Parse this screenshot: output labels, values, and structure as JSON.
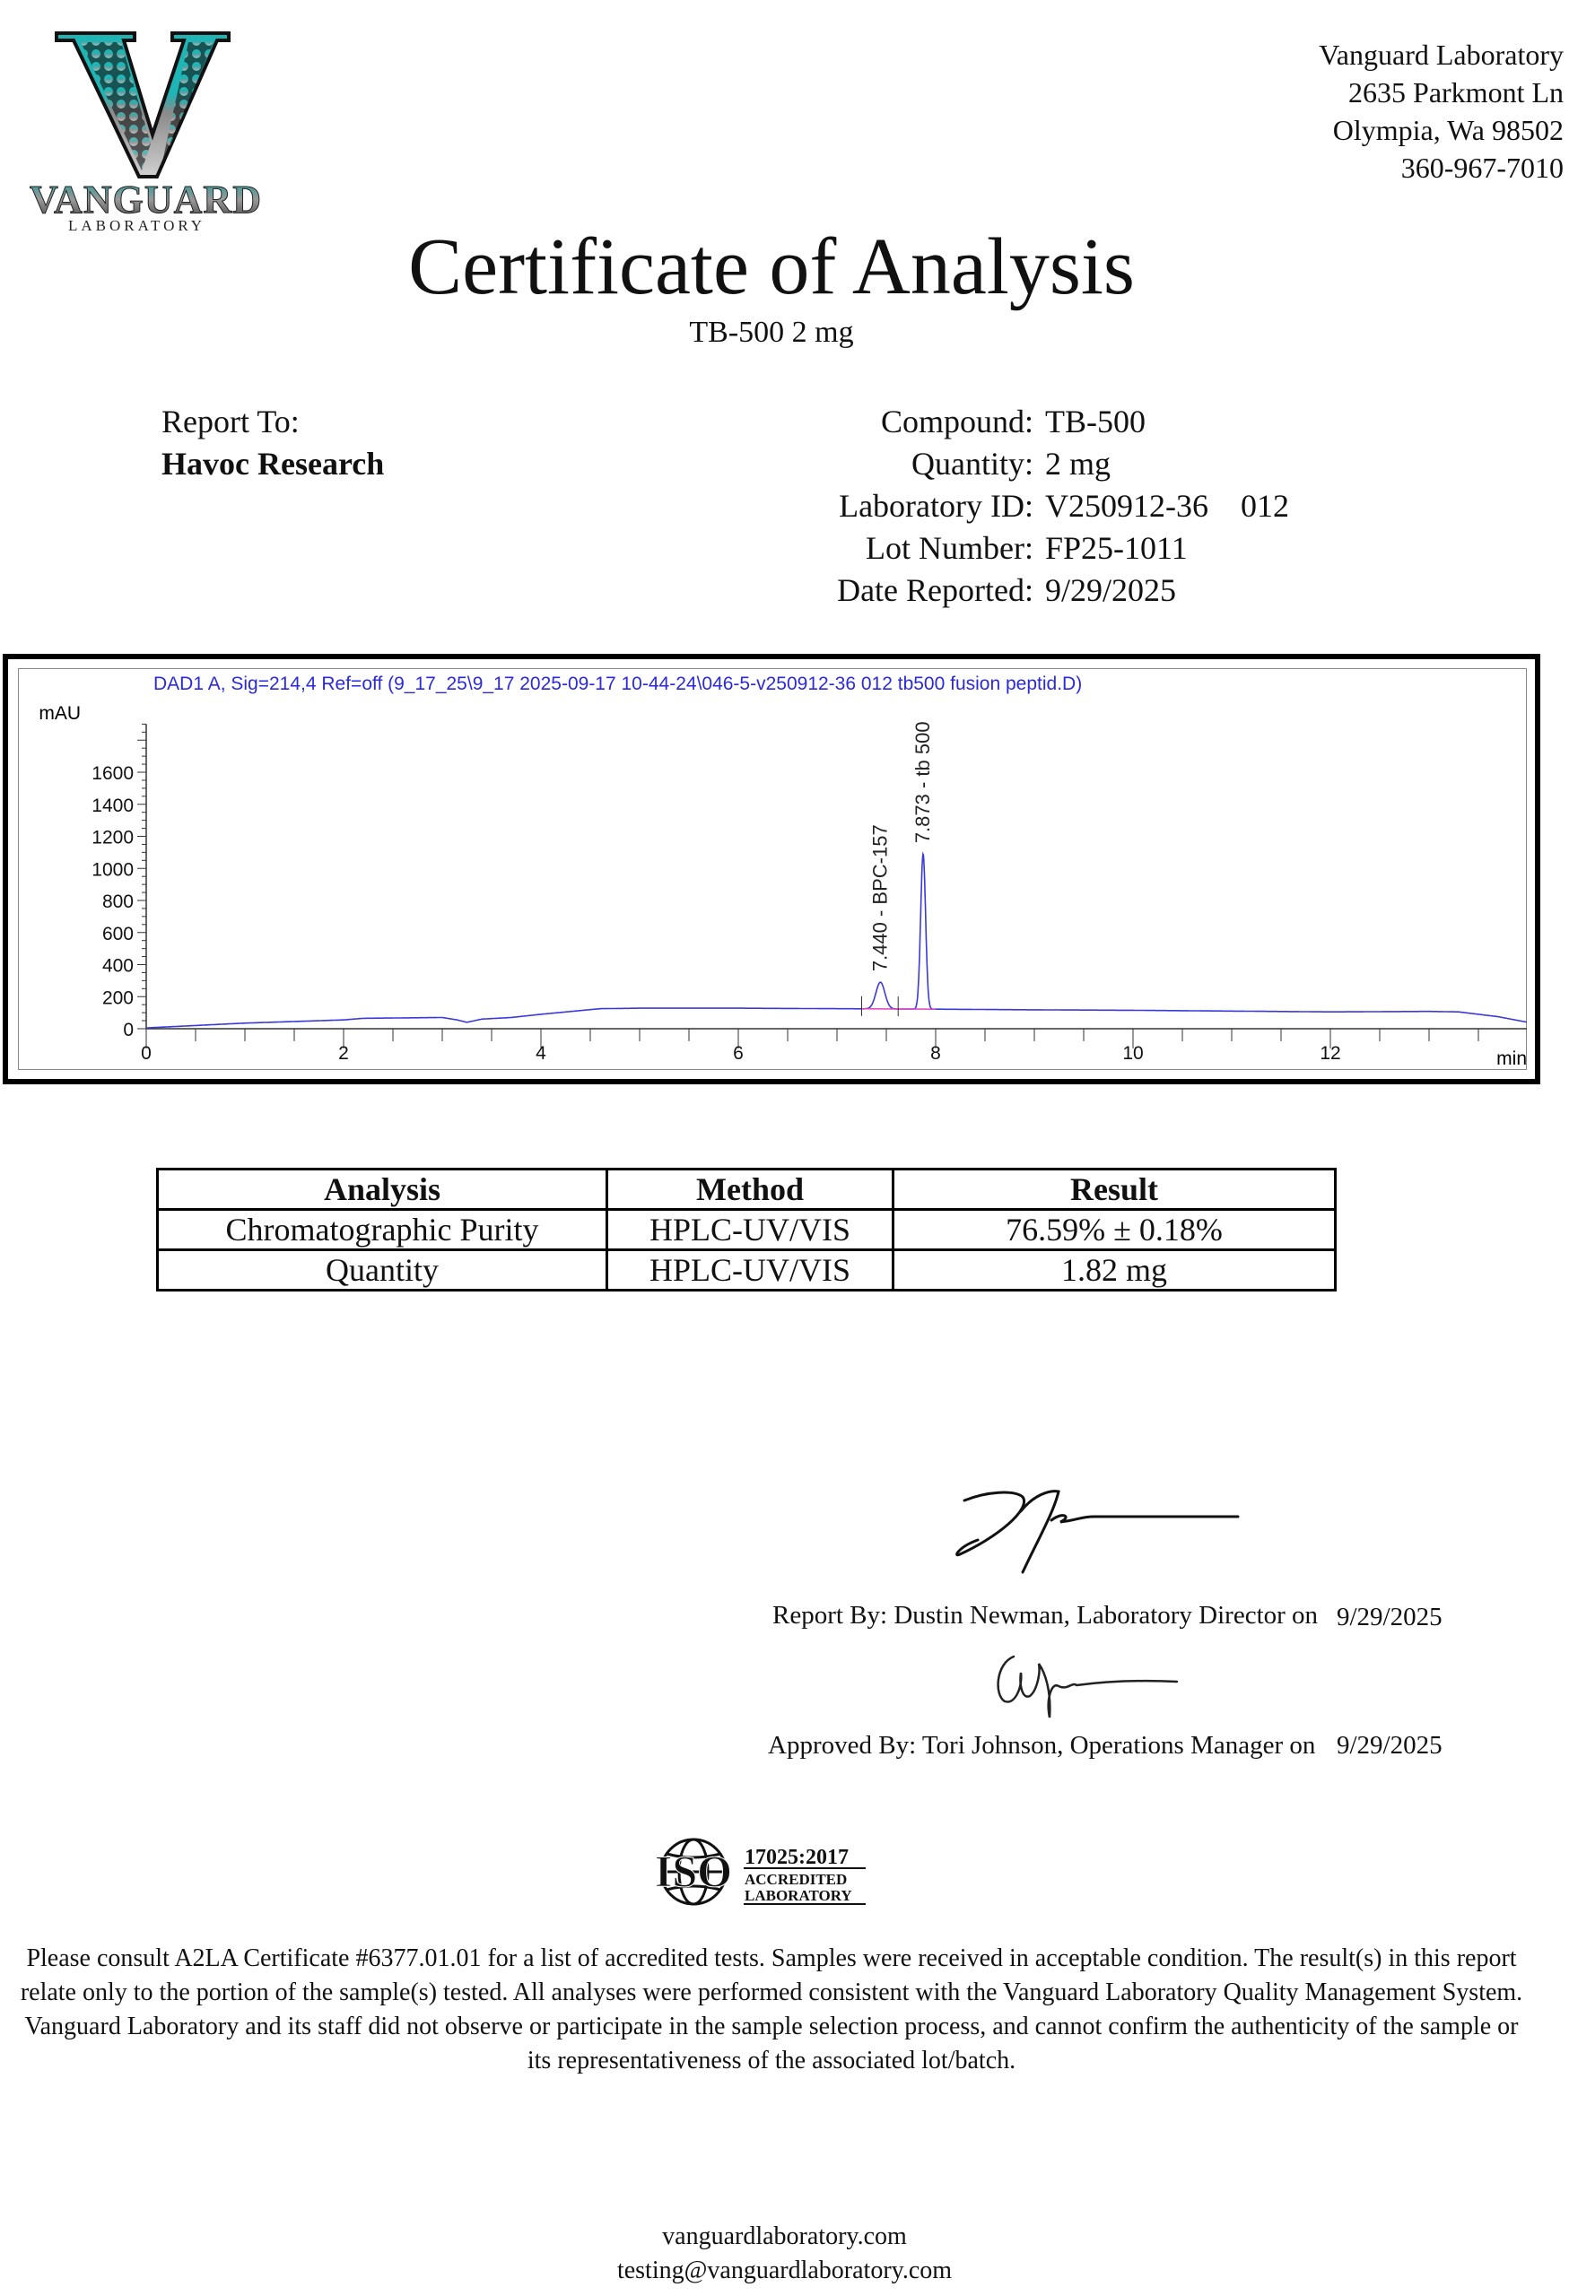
{
  "logo": {
    "letter": "V",
    "name": "VANGUARD",
    "sub": "LABORATORY",
    "teal": "#1fb5b5"
  },
  "address": [
    "Vanguard Laboratory",
    "2635 Parkmont Ln",
    "Olympia, Wa 98502",
    "360-967-7010"
  ],
  "title": "Certificate of Analysis",
  "subtitle": "TB-500 2 mg",
  "report_to": {
    "label": "Report To:",
    "name": "Havoc Research"
  },
  "info": [
    {
      "label": "Compound:",
      "value": "TB-500"
    },
    {
      "label": "Quantity:",
      "value": "2 mg"
    },
    {
      "label": "Laboratory ID:",
      "value": "V250912-36    012"
    },
    {
      "label": "Lot Number:",
      "value": "FP25-1011"
    },
    {
      "label": "Date Reported:",
      "value": "9/29/2025"
    }
  ],
  "chart_data": {
    "type": "line",
    "title": "DAD1 A, Sig=214,4 Ref=off (9_17_25\\9_17 2025-09-17 10-44-24\\046-5-v250912-36 012 tb500 fusion peptid.D)",
    "xlabel": "min",
    "ylabel": "mAU",
    "xlim": [
      0,
      14
    ],
    "ylim": [
      0,
      1900
    ],
    "xticks": [
      0,
      2,
      4,
      6,
      8,
      10,
      12
    ],
    "yticks": [
      0,
      200,
      400,
      600,
      800,
      1000,
      1200,
      1400,
      1600
    ],
    "grid": false,
    "line_color": "#3a3ad8",
    "title_color": "#2a2adc",
    "baseline": [
      [
        0,
        5
      ],
      [
        0.5,
        20
      ],
      [
        1,
        35
      ],
      [
        1.5,
        45
      ],
      [
        2,
        55
      ],
      [
        2.2,
        65
      ],
      [
        3,
        70
      ],
      [
        3.15,
        55
      ],
      [
        3.25,
        40
      ],
      [
        3.4,
        60
      ],
      [
        3.7,
        70
      ],
      [
        4,
        90
      ],
      [
        4.6,
        125
      ],
      [
        5,
        128
      ],
      [
        6,
        128
      ],
      [
        7,
        125
      ],
      [
        8,
        122
      ],
      [
        9,
        118
      ],
      [
        10,
        115
      ],
      [
        11,
        110
      ],
      [
        12,
        105
      ],
      [
        13,
        108
      ],
      [
        13.3,
        105
      ],
      [
        13.7,
        75
      ],
      [
        14,
        40
      ]
    ],
    "peaks": [
      {
        "rt": 7.44,
        "apex": 290,
        "label": "7.440 - BPC-157"
      },
      {
        "rt": 7.873,
        "apex": 1090,
        "label": "7.873 - tb 500"
      }
    ]
  },
  "table": {
    "headers": [
      "Analysis",
      "Method",
      "Result"
    ],
    "rows": [
      [
        "Chromatographic Purity",
        "HPLC-UV/VIS",
        "76.59% ± 0.18%"
      ],
      [
        "Quantity",
        "HPLC-UV/VIS",
        "1.82 mg"
      ]
    ]
  },
  "report_by": {
    "text": "Report By: Dustin Newman, Laboratory Director on",
    "date": "9/29/2025"
  },
  "approved_by": {
    "text": "Approved By: Tori Johnson, Operations Manager on",
    "date": "9/29/2025"
  },
  "iso": {
    "mark": "ISO",
    "standard": "17025:2017",
    "line1": "ACCREDITED",
    "line2": "LABORATORY"
  },
  "disclaimer": "Please consult A2LA Certificate #6377.01.01 for a list of accredited tests. Samples were received in acceptable condition. The result(s) in this report relate only to the portion of the sample(s) tested. All analyses were performed consistent with the Vanguard Laboratory Quality Management System. Vanguard Laboratory and its staff did not observe or participate in the sample selection process, and cannot confirm the authenticity of the sample or its representativeness of the associated lot/batch.",
  "footer": {
    "website": "vanguardlaboratory.com",
    "email": "testing@vanguardlaboratory.com"
  }
}
